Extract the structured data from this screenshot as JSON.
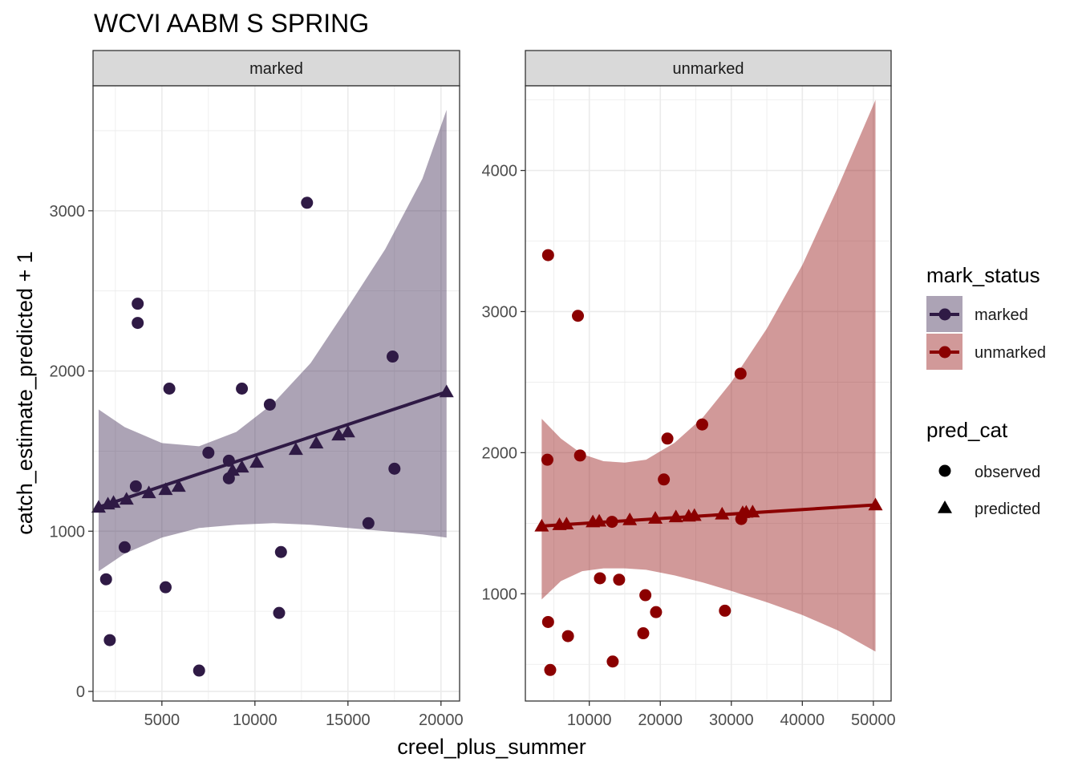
{
  "title": "WCVI AABM S SPRING",
  "colors": {
    "marked": "#2f1a45",
    "unmarked": "#8b0000",
    "strip_bg": "#d9d9d9",
    "grid": "#ebebeb",
    "axis_text": "#4d4d4d"
  },
  "chart_data": {
    "type": "scatter",
    "xlabel": "creel_plus_summer",
    "ylabel": "catch_estimate_predicted + 1",
    "legend_position": "right",
    "legend": {
      "color_title": "mark_status",
      "color_entries": [
        "marked",
        "unmarked"
      ],
      "shape_title": "pred_cat",
      "shape_entries": [
        "observed",
        "predicted"
      ]
    },
    "panels": [
      {
        "strip": "marked",
        "series_key": "marked",
        "xlim": [
          1300,
          21000
        ],
        "ylim": [
          -60,
          3780
        ],
        "x_ticks": [
          5000,
          10000,
          15000,
          20000
        ],
        "y_ticks": [
          0,
          1000,
          2000,
          3000
        ],
        "x_tick_labels": [
          "5000",
          "10000",
          "15000",
          "20000"
        ],
        "y_tick_labels": [
          "0",
          "1000",
          "2000",
          "3000"
        ],
        "observed": [
          {
            "x": 2000,
            "y": 700
          },
          {
            "x": 2200,
            "y": 320
          },
          {
            "x": 3000,
            "y": 900
          },
          {
            "x": 3600,
            "y": 1280
          },
          {
            "x": 3700,
            "y": 2420
          },
          {
            "x": 3700,
            "y": 2300
          },
          {
            "x": 5200,
            "y": 650
          },
          {
            "x": 5400,
            "y": 1890
          },
          {
            "x": 7000,
            "y": 130
          },
          {
            "x": 7500,
            "y": 1490
          },
          {
            "x": 8600,
            "y": 1440
          },
          {
            "x": 8600,
            "y": 1330
          },
          {
            "x": 9300,
            "y": 1890
          },
          {
            "x": 10800,
            "y": 1790
          },
          {
            "x": 11300,
            "y": 490
          },
          {
            "x": 11400,
            "y": 870
          },
          {
            "x": 12800,
            "y": 3050
          },
          {
            "x": 16100,
            "y": 1050
          },
          {
            "x": 17400,
            "y": 2090
          },
          {
            "x": 17500,
            "y": 1390
          }
        ],
        "predicted": [
          {
            "x": 1600,
            "y": 1150
          },
          {
            "x": 2100,
            "y": 1170
          },
          {
            "x": 2400,
            "y": 1180
          },
          {
            "x": 3100,
            "y": 1200
          },
          {
            "x": 4300,
            "y": 1240
          },
          {
            "x": 5200,
            "y": 1260
          },
          {
            "x": 5900,
            "y": 1280
          },
          {
            "x": 8800,
            "y": 1380
          },
          {
            "x": 9300,
            "y": 1400
          },
          {
            "x": 10100,
            "y": 1430
          },
          {
            "x": 12200,
            "y": 1510
          },
          {
            "x": 13300,
            "y": 1550
          },
          {
            "x": 14500,
            "y": 1600
          },
          {
            "x": 15000,
            "y": 1620
          },
          {
            "x": 20300,
            "y": 1870
          }
        ],
        "fit_line": [
          {
            "x": 1600,
            "y": 1150
          },
          {
            "x": 20300,
            "y": 1870
          }
        ],
        "ci_band": [
          {
            "x": 1600,
            "lo": 750,
            "hi": 1760
          },
          {
            "x": 3000,
            "lo": 860,
            "hi": 1650
          },
          {
            "x": 5000,
            "lo": 960,
            "hi": 1550
          },
          {
            "x": 7000,
            "lo": 1020,
            "hi": 1530
          },
          {
            "x": 9000,
            "lo": 1040,
            "hi": 1620
          },
          {
            "x": 11000,
            "lo": 1050,
            "hi": 1800
          },
          {
            "x": 13000,
            "lo": 1040,
            "hi": 2050
          },
          {
            "x": 15000,
            "lo": 1020,
            "hi": 2400
          },
          {
            "x": 17000,
            "lo": 1000,
            "hi": 2760
          },
          {
            "x": 19000,
            "lo": 980,
            "hi": 3200
          },
          {
            "x": 20300,
            "lo": 960,
            "hi": 3630
          }
        ]
      },
      {
        "strip": "unmarked",
        "series_key": "unmarked",
        "xlim": [
          1000,
          52500
        ],
        "ylim": [
          240,
          4600
        ],
        "x_ticks": [
          10000,
          20000,
          30000,
          40000,
          50000
        ],
        "y_ticks": [
          1000,
          2000,
          3000,
          4000
        ],
        "x_tick_labels": [
          "10000",
          "20000",
          "30000",
          "40000",
          "50000"
        ],
        "y_tick_labels": [
          "1000",
          "2000",
          "3000",
          "4000"
        ],
        "observed": [
          {
            "x": 4100,
            "y": 1950
          },
          {
            "x": 4200,
            "y": 3400
          },
          {
            "x": 4200,
            "y": 800
          },
          {
            "x": 4500,
            "y": 460
          },
          {
            "x": 7000,
            "y": 700
          },
          {
            "x": 8400,
            "y": 2970
          },
          {
            "x": 8700,
            "y": 1980
          },
          {
            "x": 11500,
            "y": 1110
          },
          {
            "x": 13300,
            "y": 520
          },
          {
            "x": 14200,
            "y": 1100
          },
          {
            "x": 17600,
            "y": 720
          },
          {
            "x": 17900,
            "y": 990
          },
          {
            "x": 19400,
            "y": 870
          },
          {
            "x": 20500,
            "y": 1810
          },
          {
            "x": 21000,
            "y": 2100
          },
          {
            "x": 25900,
            "y": 2200
          },
          {
            "x": 29100,
            "y": 880
          },
          {
            "x": 31300,
            "y": 2560
          },
          {
            "x": 31400,
            "y": 1530
          },
          {
            "x": 13200,
            "y": 1510
          }
        ],
        "predicted": [
          {
            "x": 3300,
            "y": 1480
          },
          {
            "x": 5800,
            "y": 1490
          },
          {
            "x": 6800,
            "y": 1495
          },
          {
            "x": 10500,
            "y": 1510
          },
          {
            "x": 11400,
            "y": 1515
          },
          {
            "x": 15700,
            "y": 1525
          },
          {
            "x": 19300,
            "y": 1535
          },
          {
            "x": 22200,
            "y": 1545
          },
          {
            "x": 24000,
            "y": 1550
          },
          {
            "x": 24800,
            "y": 1555
          },
          {
            "x": 28700,
            "y": 1565
          },
          {
            "x": 31600,
            "y": 1575
          },
          {
            "x": 32100,
            "y": 1578
          },
          {
            "x": 33000,
            "y": 1580
          },
          {
            "x": 50300,
            "y": 1630
          }
        ],
        "fit_line": [
          {
            "x": 3300,
            "y": 1480
          },
          {
            "x": 50300,
            "y": 1630
          }
        ],
        "ci_band": [
          {
            "x": 3300,
            "lo": 960,
            "hi": 2240
          },
          {
            "x": 6000,
            "lo": 1090,
            "hi": 2100
          },
          {
            "x": 9000,
            "lo": 1160,
            "hi": 1990
          },
          {
            "x": 12000,
            "lo": 1180,
            "hi": 1940
          },
          {
            "x": 15000,
            "lo": 1180,
            "hi": 1930
          },
          {
            "x": 18000,
            "lo": 1170,
            "hi": 1950
          },
          {
            "x": 22000,
            "lo": 1130,
            "hi": 2070
          },
          {
            "x": 26000,
            "lo": 1080,
            "hi": 2250
          },
          {
            "x": 30000,
            "lo": 1020,
            "hi": 2500
          },
          {
            "x": 35000,
            "lo": 940,
            "hi": 2880
          },
          {
            "x": 40000,
            "lo": 850,
            "hi": 3330
          },
          {
            "x": 45000,
            "lo": 740,
            "hi": 3880
          },
          {
            "x": 50300,
            "lo": 590,
            "hi": 4500
          }
        ]
      }
    ]
  }
}
